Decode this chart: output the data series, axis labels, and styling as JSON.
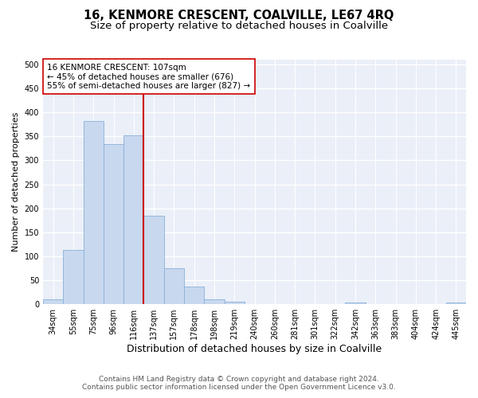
{
  "title": "16, KENMORE CRESCENT, COALVILLE, LE67 4RQ",
  "subtitle": "Size of property relative to detached houses in Coalville",
  "xlabel": "Distribution of detached houses by size in Coalville",
  "ylabel": "Number of detached properties",
  "categories": [
    "34sqm",
    "55sqm",
    "75sqm",
    "96sqm",
    "116sqm",
    "137sqm",
    "157sqm",
    "178sqm",
    "198sqm",
    "219sqm",
    "240sqm",
    "260sqm",
    "281sqm",
    "301sqm",
    "322sqm",
    "342sqm",
    "363sqm",
    "383sqm",
    "404sqm",
    "424sqm",
    "445sqm"
  ],
  "values": [
    10,
    113,
    383,
    334,
    353,
    185,
    75,
    37,
    10,
    6,
    0,
    0,
    0,
    0,
    0,
    4,
    0,
    0,
    0,
    0,
    4
  ],
  "bar_color": "#c8d8ee",
  "bar_edge_color": "#8ab0d8",
  "vline_color": "#cc0000",
  "vline_index": 4.5,
  "annotation_title": "16 KENMORE CRESCENT: 107sqm",
  "annotation_line1": "← 45% of detached houses are smaller (676)",
  "annotation_line2": "55% of semi-detached houses are larger (827) →",
  "annotation_box_color": "#ffffff",
  "annotation_box_edge": "#cc0000",
  "footer1": "Contains HM Land Registry data © Crown copyright and database right 2024.",
  "footer2": "Contains public sector information licensed under the Open Government Licence v3.0.",
  "ylim": [
    0,
    510
  ],
  "yticks": [
    0,
    50,
    100,
    150,
    200,
    250,
    300,
    350,
    400,
    450,
    500
  ],
  "fig_bg_color": "#ffffff",
  "plot_bg_color": "#eaeff8",
  "grid_color": "#ffffff",
  "title_fontsize": 10.5,
  "subtitle_fontsize": 9.5,
  "xlabel_fontsize": 9,
  "ylabel_fontsize": 8,
  "tick_fontsize": 7,
  "annotation_fontsize": 7.5,
  "footer_fontsize": 6.5
}
